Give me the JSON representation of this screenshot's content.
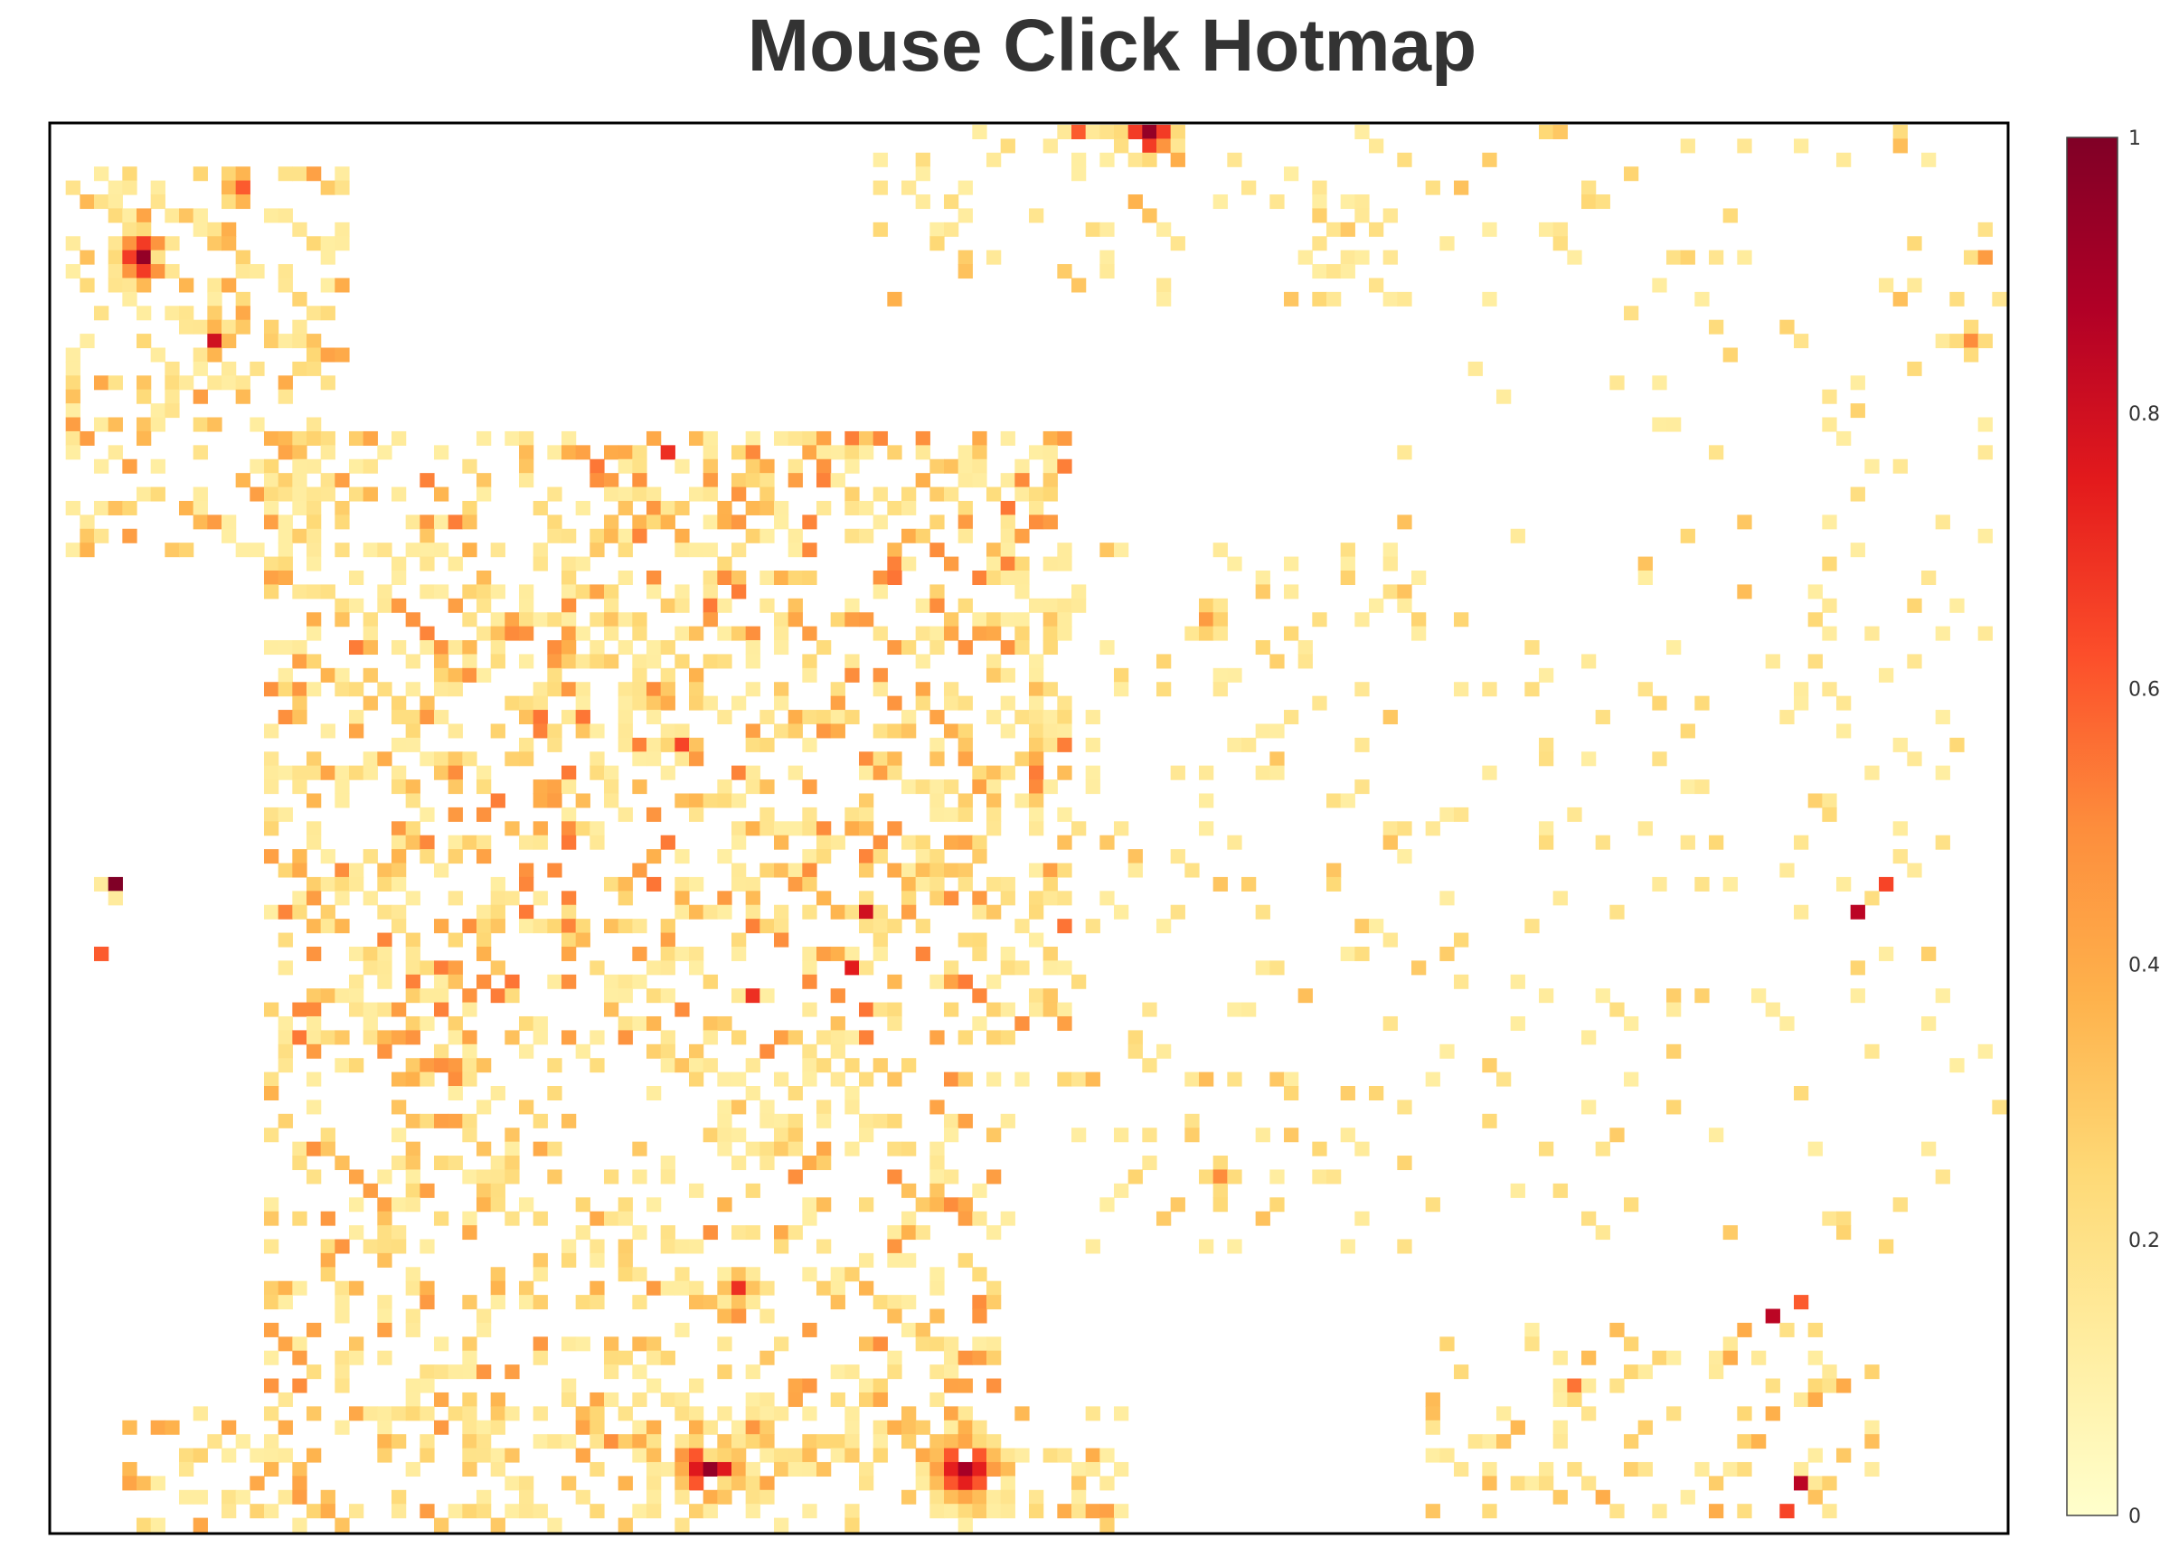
{
  "chart_data": {
    "type": "heatmap",
    "title": "Mouse Click Hotmap",
    "xlabel": "",
    "ylabel": "",
    "grid": false,
    "colorscale_name": "YlOrRd",
    "colorscale": [
      "#ffffcc",
      "#ffeda0",
      "#fed976",
      "#feb24c",
      "#fd8d3c",
      "#fc4e2a",
      "#e31a1c",
      "#b10026",
      "#800026"
    ],
    "zlim": [
      0,
      1
    ],
    "colorbar": {
      "tick_labels": [
        "0",
        "0.2",
        "0.4",
        "0.6",
        "0.8",
        "1"
      ],
      "tick_values": [
        0,
        0.2,
        0.4,
        0.6,
        0.8,
        1
      ]
    },
    "grid_size": {
      "cols": 138,
      "rows": 101
    },
    "hotspots": [
      {
        "col": 6,
        "row": 9,
        "value": 0.95,
        "spread": 1.2
      },
      {
        "col": 11,
        "row": 15,
        "value": 0.8,
        "spread": 0.8
      },
      {
        "col": 13,
        "row": 4,
        "value": 0.6,
        "spread": 1.0
      },
      {
        "col": 4,
        "row": 54,
        "value": 1.0,
        "spread": 0.5
      },
      {
        "col": 3,
        "row": 59,
        "value": 0.6,
        "spread": 0.5
      },
      {
        "col": 77,
        "row": 0,
        "value": 0.95,
        "spread": 1.2
      },
      {
        "col": 72,
        "row": 0,
        "value": 0.6,
        "spread": 0.6
      },
      {
        "col": 43,
        "row": 23,
        "value": 0.7,
        "spread": 0.5
      },
      {
        "col": 57,
        "row": 56,
        "value": 0.8,
        "spread": 0.6
      },
      {
        "col": 56,
        "row": 60,
        "value": 0.75,
        "spread": 0.5
      },
      {
        "col": 49,
        "row": 62,
        "value": 0.7,
        "spread": 0.5
      },
      {
        "col": 44,
        "row": 44,
        "value": 0.65,
        "spread": 0.5
      },
      {
        "col": 48,
        "row": 83,
        "value": 0.7,
        "spread": 0.8
      },
      {
        "col": 46,
        "row": 96,
        "value": 0.95,
        "spread": 1.5
      },
      {
        "col": 64,
        "row": 96,
        "value": 0.9,
        "spread": 1.6
      },
      {
        "col": 127,
        "row": 56,
        "value": 0.85,
        "spread": 0.5
      },
      {
        "col": 129,
        "row": 54,
        "value": 0.65,
        "spread": 0.5
      },
      {
        "col": 121,
        "row": 85,
        "value": 0.85,
        "spread": 0.5
      },
      {
        "col": 123,
        "row": 84,
        "value": 0.6,
        "spread": 0.5
      },
      {
        "col": 123,
        "row": 97,
        "value": 0.85,
        "spread": 0.5
      },
      {
        "col": 122,
        "row": 99,
        "value": 0.65,
        "spread": 0.5
      },
      {
        "col": 107,
        "row": 90,
        "value": 0.55,
        "spread": 0.6
      },
      {
        "col": 42,
        "row": 40,
        "value": 0.5,
        "spread": 1.0
      },
      {
        "col": 28,
        "row": 46,
        "value": 0.5,
        "spread": 1.0
      },
      {
        "col": 81,
        "row": 35,
        "value": 0.45,
        "spread": 1.0
      },
      {
        "col": 82,
        "row": 75,
        "value": 0.5,
        "spread": 0.8
      },
      {
        "col": 136,
        "row": 9,
        "value": 0.45,
        "spread": 0.8
      },
      {
        "col": 135,
        "row": 15,
        "value": 0.5,
        "spread": 0.8
      }
    ],
    "density_regions": [
      {
        "col_min": 1,
        "col_max": 20,
        "row_min": 3,
        "row_max": 30,
        "density": 0.34,
        "max_value": 0.45
      },
      {
        "col_min": 15,
        "col_max": 71,
        "row_min": 22,
        "row_max": 65,
        "density": 0.4,
        "max_value": 0.55
      },
      {
        "col_min": 15,
        "col_max": 66,
        "row_min": 65,
        "row_max": 95,
        "density": 0.3,
        "max_value": 0.5
      },
      {
        "col_min": 58,
        "col_max": 95,
        "row_min": 0,
        "row_max": 12,
        "density": 0.16,
        "max_value": 0.4
      },
      {
        "col_min": 66,
        "col_max": 95,
        "row_min": 30,
        "row_max": 80,
        "density": 0.11,
        "max_value": 0.35
      },
      {
        "col_min": 95,
        "col_max": 137,
        "row_min": 0,
        "row_max": 40,
        "density": 0.06,
        "max_value": 0.35
      },
      {
        "col_min": 95,
        "col_max": 137,
        "row_min": 40,
        "row_max": 80,
        "density": 0.07,
        "max_value": 0.3
      },
      {
        "col_min": 97,
        "col_max": 128,
        "row_min": 86,
        "row_max": 99,
        "density": 0.2,
        "max_value": 0.4
      },
      {
        "col_min": 5,
        "col_max": 75,
        "row_min": 92,
        "row_max": 100,
        "density": 0.28,
        "max_value": 0.45
      }
    ]
  }
}
